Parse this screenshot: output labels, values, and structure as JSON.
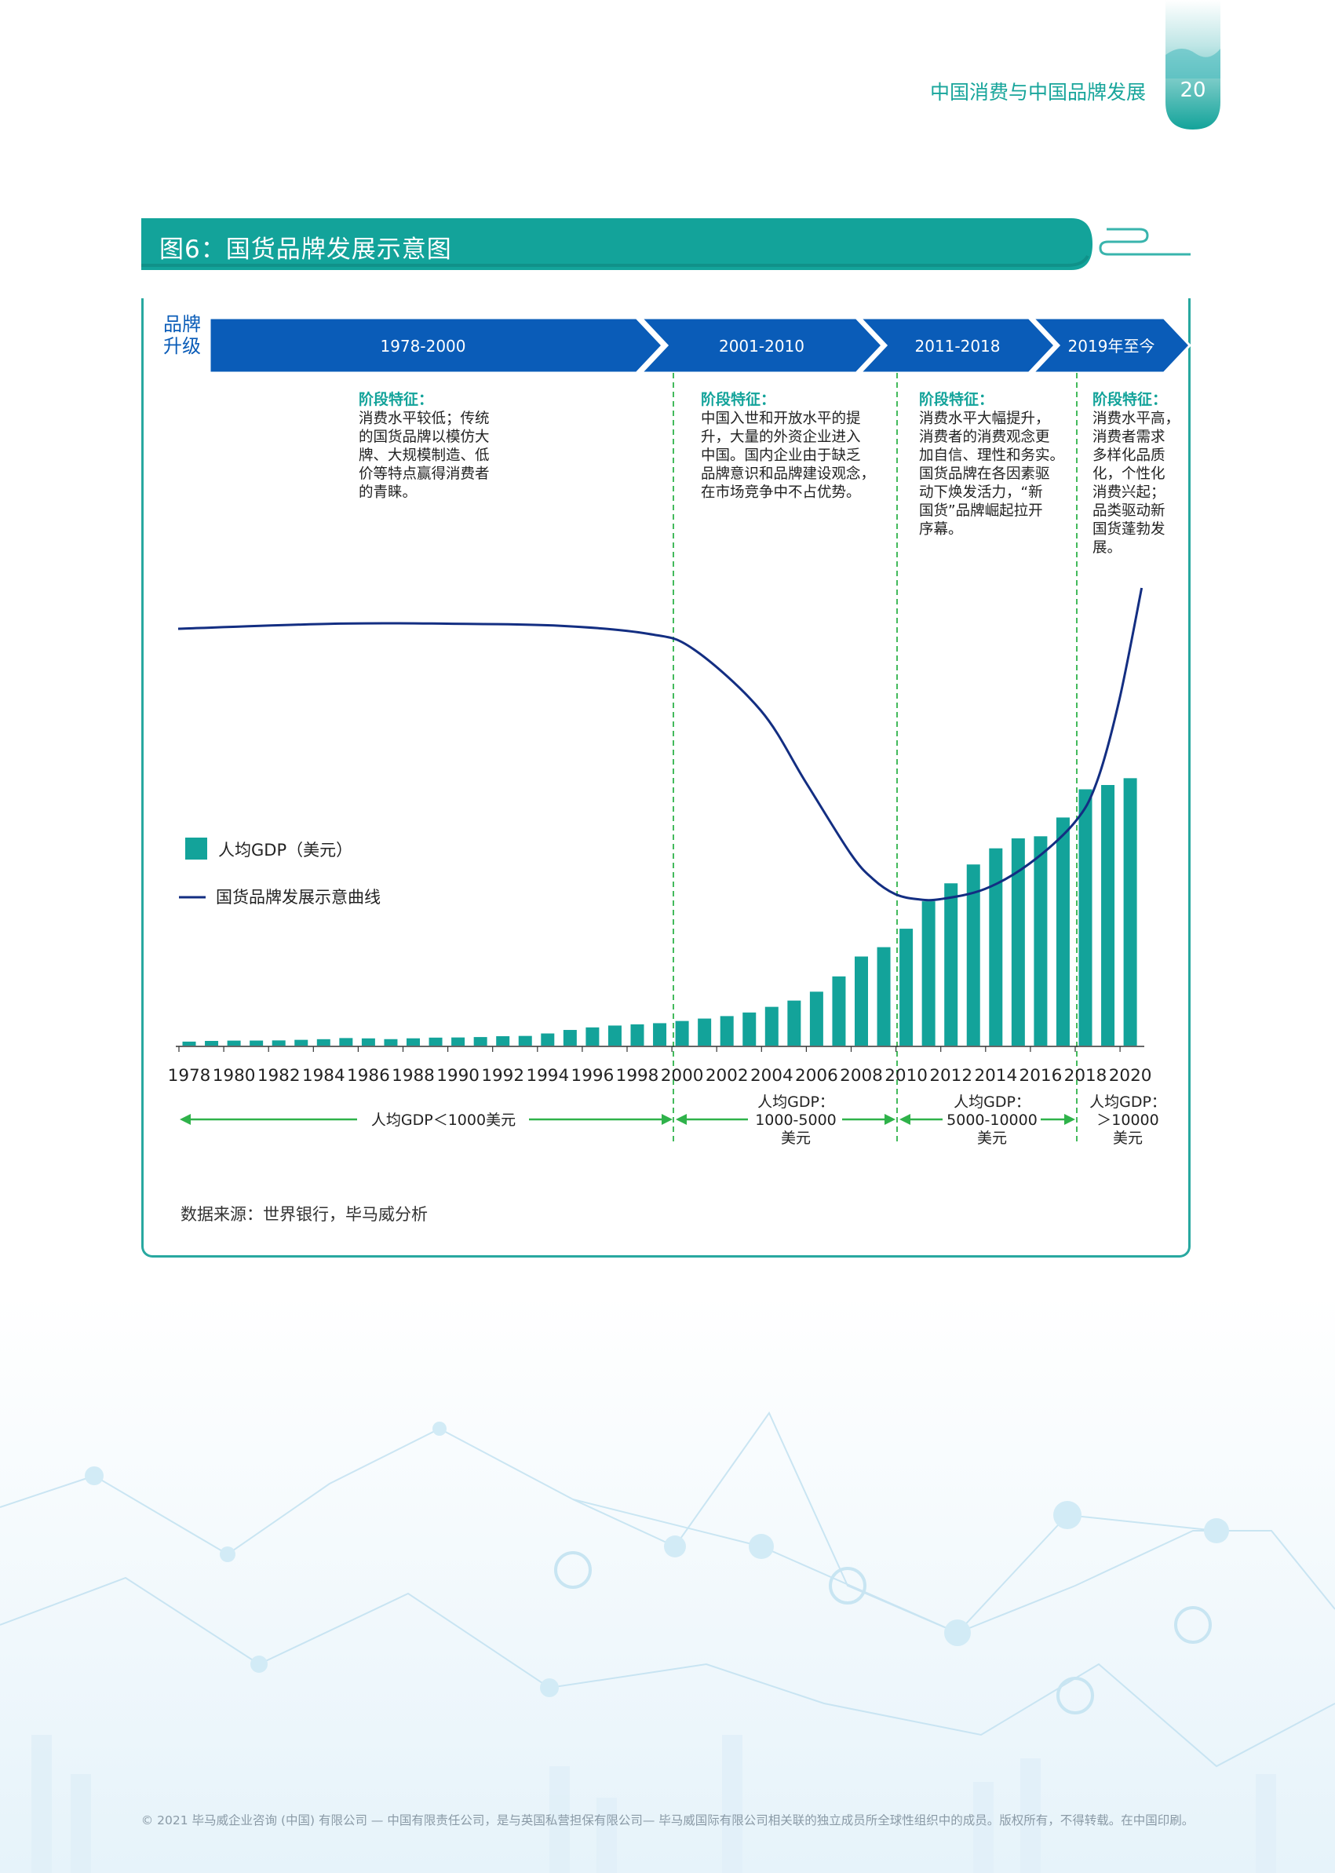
{
  "header": {
    "title": "中国消费与中国品牌发展",
    "page_number": "20"
  },
  "figure": {
    "title": "图6：国货品牌发展示意图",
    "source": "数据来源：世界银行，毕马威分析"
  },
  "footer": {
    "text": "© 2021 毕马威企业咨询 (中国) 有限公司 — 中国有限责任公司，是与英国私营担保有限公司— 毕马威国际有限公司相关联的独立成员所全球性组织中的成员。版权所有，不得转载。在中国印刷。"
  },
  "colors": {
    "teal": "#13a39a",
    "deep_blue": "#0a5cb8",
    "navy_curve": "#132e82",
    "green_arrow": "#2fb24a",
    "bar": "#13a39a"
  },
  "chart_data": {
    "type": "bar",
    "brand_label": [
      "品牌",
      "升级"
    ],
    "stages": [
      {
        "period": "1978-2000",
        "feature_title": "阶段特征：",
        "feature_lines": [
          "消费水平较低；传统",
          "的国货品牌以模仿大",
          "牌、大规模制造、低",
          "价等特点赢得消费者",
          "的青睐。"
        ]
      },
      {
        "period": "2001-2010",
        "feature_title": "阶段特征：",
        "feature_lines": [
          "中国入世和开放水平的提",
          "升，大量的外资企业进入",
          "中国。国内企业由于缺乏",
          "品牌意识和品牌建设观念，",
          "在市场竞争中不占优势。"
        ]
      },
      {
        "period": "2011-2018",
        "feature_title": "阶段特征：",
        "feature_lines": [
          "消费水平大幅提升，",
          "消费者的消费观念更",
          "加自信、理性和务实。",
          "国货品牌在各因素驱",
          "动下焕发活力，“新",
          "国货”品牌崛起拉开",
          "序幕。"
        ]
      },
      {
        "period": "2019年至今",
        "feature_title": "阶段特征：",
        "feature_lines": [
          "消费水平高，",
          "消费者需求",
          "多样化品质",
          "化，个性化",
          "消费兴起；",
          "品类驱动新",
          "国货蓬勃发",
          "展。"
        ]
      }
    ],
    "legend": [
      {
        "name": "人均GDP（美元）",
        "marker": "square"
      },
      {
        "name": "国货品牌发展示意曲线",
        "marker": "line"
      }
    ],
    "x": [
      "1978",
      "1979",
      "1980",
      "1981",
      "1982",
      "1983",
      "1984",
      "1985",
      "1986",
      "1987",
      "1988",
      "1989",
      "1990",
      "1991",
      "1992",
      "1993",
      "1994",
      "1995",
      "1996",
      "1997",
      "1998",
      "1999",
      "2000",
      "2001",
      "2002",
      "2003",
      "2004",
      "2005",
      "2006",
      "2007",
      "2008",
      "2009",
      "2010",
      "2011",
      "2012",
      "2013",
      "2014",
      "2015",
      "2016",
      "2017",
      "2018",
      "2019",
      "2020"
    ],
    "x_tick_labels": [
      "1978",
      "1980",
      "1982",
      "1984",
      "1986",
      "1988",
      "1990",
      "1992",
      "1994",
      "1996",
      "1998",
      "2000",
      "2002",
      "2004",
      "2006",
      "2008",
      "2010",
      "2012",
      "2014",
      "2016",
      "2018",
      "2020"
    ],
    "series": [
      {
        "name": "人均GDP（美元）",
        "values": [
          156,
          183,
          195,
          197,
          203,
          225,
          250,
          294,
          282,
          252,
          284,
          311,
          317,
          333,
          366,
          377,
          473,
          610,
          709,
          781,
          828,
          873,
          959,
          1053,
          1149,
          1289,
          1509,
          1753,
          2099,
          2694,
          3468,
          3832,
          4550,
          5618,
          6317,
          7051,
          7679,
          8067,
          8148,
          8879,
          9977,
          10144,
          10409
        ]
      }
    ],
    "brand_curve": {
      "name": "国货品牌发展示意曲线",
      "note_unitless": true,
      "x": [
        1978,
        1985,
        1990,
        1995,
        1999,
        2001,
        2004,
        2006,
        2008,
        2009,
        2010,
        2011,
        2012,
        2014,
        2016,
        2018,
        2019,
        2020,
        2021
      ],
      "y": [
        5.8,
        5.85,
        5.85,
        5.83,
        5.75,
        5.6,
        5.0,
        4.3,
        3.6,
        3.35,
        3.2,
        3.15,
        3.15,
        3.25,
        3.5,
        3.9,
        4.3,
        5.1,
        6.2
      ]
    },
    "gdp_ranges": [
      {
        "label": "人均GDP＜1000美元",
        "from": "1978",
        "to": "2000"
      },
      {
        "label_lines": [
          "人均GDP：",
          "1000-5000",
          "美元"
        ],
        "from": "2000",
        "to": "2010"
      },
      {
        "label_lines": [
          "人均GDP：",
          "5000-10000",
          "美元"
        ],
        "from": "2010",
        "to": "2018"
      },
      {
        "label_lines": [
          "人均GDP：",
          "＞10000",
          "美元"
        ],
        "from": "2018",
        "to": "2020"
      }
    ]
  }
}
